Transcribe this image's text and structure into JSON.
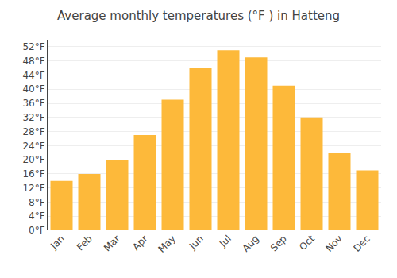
{
  "chart_data": {
    "type": "bar",
    "title": "Average monthly temperatures (°F ) in Hatteng",
    "categories": [
      "Jan",
      "Feb",
      "Mar",
      "Apr",
      "May",
      "Jun",
      "Jul",
      "Aug",
      "Sep",
      "Oct",
      "Nov",
      "Dec"
    ],
    "values": [
      14,
      16,
      20,
      27,
      37,
      46,
      51,
      49,
      41,
      32,
      22,
      17
    ],
    "color": "#FDB93A",
    "ylim": [
      0,
      54
    ],
    "yticks": [
      {
        "value": 0,
        "label": "0°F"
      },
      {
        "value": 4,
        "label": "4°F"
      },
      {
        "value": 8,
        "label": "8°F"
      },
      {
        "value": 12,
        "label": "12°F"
      },
      {
        "value": 16,
        "label": "16°F"
      },
      {
        "value": 20,
        "label": "20°F"
      },
      {
        "value": 24,
        "label": "24°F"
      },
      {
        "value": 28,
        "label": "28°F"
      },
      {
        "value": 32,
        "label": "32°F"
      },
      {
        "value": 36,
        "label": "36°F"
      },
      {
        "value": 40,
        "label": "40°F"
      },
      {
        "value": 44,
        "label": "44°F"
      },
      {
        "value": 48,
        "label": "48°F"
      },
      {
        "value": 52,
        "label": "52°F"
      }
    ],
    "grid": true
  }
}
